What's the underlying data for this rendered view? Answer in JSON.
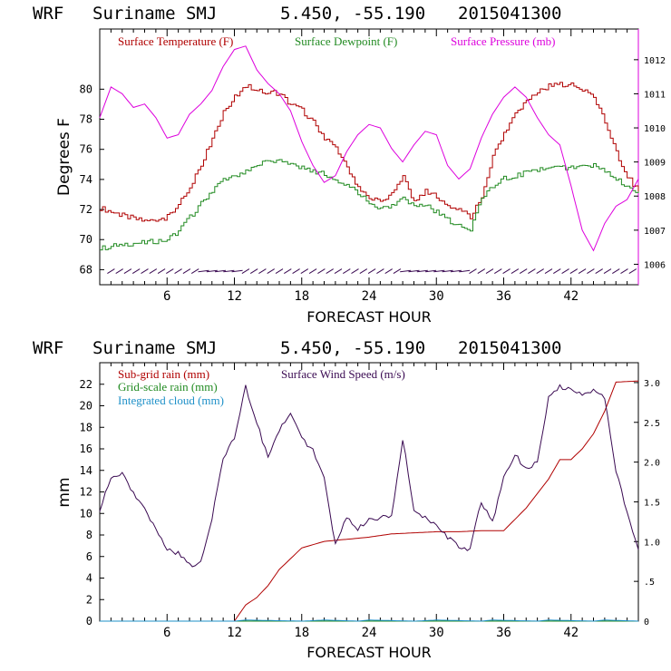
{
  "chart_data": [
    {
      "type": "line",
      "header": {
        "model": "WRF",
        "location": "Suriname SMJ",
        "coords": "5.450, -55.190",
        "init": "2015041300"
      },
      "xlabel": "FORECAST HOUR",
      "ylabel": "Degrees F",
      "xlim": [
        0,
        48
      ],
      "ylim": [
        67,
        84
      ],
      "y2lim": [
        1005.4,
        1012.9
      ],
      "xticks": [
        "6",
        "12",
        "18",
        "24",
        "30",
        "36",
        "42"
      ],
      "yticks": [
        "68",
        "70",
        "72",
        "74",
        "76",
        "78",
        "80"
      ],
      "y2ticks": [
        "1006",
        "1007",
        "1008",
        "1009",
        "1010",
        "1011",
        "1012"
      ],
      "legend": [
        "Surface Temperature (F)",
        "Surface Dewpoint (F)",
        "Surface Pressure (mb)"
      ],
      "colors": {
        "temperature": "#b00000",
        "dewpoint": "#228b22",
        "pressure": "#dd00dd",
        "axis": "#000000",
        "wind_barb": "#3a0a52"
      },
      "series": [
        {
          "name": "Surface Temperature (F)",
          "axis": "left",
          "x": [
            0,
            2,
            4,
            6,
            7,
            8,
            9,
            10,
            11,
            12,
            13,
            14,
            15,
            16,
            17,
            18,
            19,
            20,
            21,
            22,
            23,
            24,
            25,
            26,
            27,
            28,
            29,
            30,
            31,
            32,
            33,
            34,
            35,
            36,
            37,
            38,
            39,
            40,
            41,
            42,
            43,
            44,
            45,
            46,
            47,
            48
          ],
          "values": [
            72.1,
            71.6,
            71.2,
            71.5,
            72.3,
            73.5,
            75.0,
            76.8,
            78.5,
            79.5,
            80.2,
            80.0,
            79.8,
            79.7,
            79.0,
            78.6,
            77.8,
            76.8,
            76.0,
            74.8,
            73.5,
            72.8,
            72.5,
            73.0,
            74.2,
            72.5,
            73.3,
            72.8,
            72.3,
            72.0,
            71.5,
            72.8,
            75.5,
            77.0,
            78.3,
            79.2,
            79.8,
            80.2,
            80.3,
            80.4,
            80.0,
            79.5,
            77.8,
            75.8,
            74.2,
            73.2
          ]
        },
        {
          "name": "Surface Dewpoint (F)",
          "axis": "left",
          "x": [
            0,
            2,
            4,
            6,
            7,
            8,
            9,
            10,
            11,
            12,
            13,
            14,
            15,
            16,
            17,
            18,
            19,
            20,
            21,
            22,
            23,
            24,
            25,
            26,
            27,
            28,
            29,
            30,
            31,
            32,
            33,
            34,
            35,
            36,
            37,
            38,
            39,
            40,
            41,
            42,
            43,
            44,
            45,
            46,
            47,
            48
          ],
          "values": [
            69.4,
            69.7,
            69.8,
            70.0,
            70.6,
            71.5,
            72.4,
            73.3,
            73.9,
            74.2,
            74.6,
            75.0,
            75.2,
            75.2,
            75.0,
            74.8,
            74.6,
            74.3,
            74.0,
            73.6,
            73.1,
            72.4,
            72.0,
            72.2,
            72.7,
            72.2,
            72.3,
            71.8,
            71.3,
            71.0,
            70.7,
            72.8,
            73.5,
            74.1,
            74.2,
            74.5,
            74.6,
            74.7,
            74.8,
            74.8,
            74.9,
            74.9,
            74.5,
            74.0,
            73.6,
            73.2
          ]
        },
        {
          "name": "Surface Pressure (mb)",
          "axis": "right",
          "x": [
            0,
            1,
            2,
            3,
            4,
            5,
            6,
            7,
            8,
            9,
            10,
            11,
            12,
            13,
            14,
            15,
            16,
            17,
            18,
            19,
            20,
            21,
            22,
            23,
            24,
            25,
            26,
            27,
            28,
            29,
            30,
            31,
            32,
            33,
            34,
            35,
            36,
            37,
            38,
            39,
            40,
            41,
            42,
            43,
            44,
            45,
            46,
            47,
            48
          ],
          "values": [
            1010.3,
            1011.2,
            1011.0,
            1010.6,
            1010.7,
            1010.3,
            1009.7,
            1009.8,
            1010.4,
            1010.7,
            1011.1,
            1011.8,
            1012.3,
            1012.4,
            1011.7,
            1011.3,
            1011.0,
            1010.5,
            1009.6,
            1008.9,
            1008.4,
            1008.6,
            1009.3,
            1009.8,
            1010.1,
            1010.0,
            1009.4,
            1009.0,
            1009.5,
            1009.9,
            1009.8,
            1008.9,
            1008.5,
            1008.8,
            1009.7,
            1010.4,
            1010.9,
            1011.2,
            1010.9,
            1010.3,
            1009.8,
            1009.5,
            1008.3,
            1007.0,
            1006.4,
            1007.2,
            1007.7,
            1007.9,
            1008.5
          ]
        }
      ],
      "wind_barbs": {
        "x_start": 1,
        "x_end": 48,
        "step": 0.75,
        "y_value": 67.9
      }
    },
    {
      "type": "line",
      "header": {
        "model": "WRF",
        "location": "Suriname SMJ",
        "coords": "5.450, -55.190",
        "init": "2015041300"
      },
      "xlabel": "FORECAST HOUR",
      "ylabel": "mm",
      "xlim": [
        0,
        48
      ],
      "ylim": [
        0,
        24
      ],
      "y2lim": [
        0,
        3.25
      ],
      "xticks": [
        "6",
        "12",
        "18",
        "24",
        "30",
        "36",
        "42"
      ],
      "yticks": [
        "0",
        "2",
        "4",
        "6",
        "8",
        "10",
        "12",
        "14",
        "16",
        "18",
        "20",
        "22"
      ],
      "y2ticks": [
        "0",
        ".5",
        "1.0",
        "1.5",
        "2.0",
        "2.5",
        "3.0"
      ],
      "legend": [
        "Sub-grid rain (mm)",
        "Grid-scale rain (mm)",
        "Integrated cloud (mm)",
        "Surface Wind Speed (m/s)"
      ],
      "colors": {
        "subgrid": "#b00000",
        "gridscale": "#228b22",
        "cloud": "#1e90c8",
        "wind": "#3a0a52",
        "axis": "#000000"
      },
      "series": [
        {
          "name": "Sub-grid rain (mm)",
          "axis": "left",
          "x": [
            0,
            12,
            13,
            14,
            15,
            16,
            17,
            18,
            19,
            20,
            22,
            24,
            26,
            28,
            30,
            32,
            34,
            36,
            38,
            40,
            41,
            42,
            43,
            44,
            45,
            46,
            48
          ],
          "values": [
            0,
            0,
            1.5,
            2.2,
            3.3,
            4.8,
            5.8,
            6.8,
            7.1,
            7.4,
            7.6,
            7.8,
            8.1,
            8.2,
            8.3,
            8.3,
            8.4,
            8.4,
            10.5,
            13.2,
            15.0,
            15.0,
            16.0,
            17.4,
            19.5,
            22.2,
            22.3
          ]
        },
        {
          "name": "Grid-scale rain (mm)",
          "axis": "left",
          "x": [
            0,
            48
          ],
          "values": [
            0,
            0
          ]
        },
        {
          "name": "Integrated cloud (mm)",
          "axis": "left",
          "x": [
            0,
            12,
            13,
            18,
            20,
            23,
            24,
            28,
            30,
            34,
            35,
            39,
            40,
            44,
            45,
            48
          ],
          "values": [
            0,
            0,
            0.1,
            0,
            0.1,
            0,
            0.1,
            0,
            0.1,
            0,
            0.1,
            0,
            0.1,
            0,
            0.1,
            0
          ]
        },
        {
          "name": "Surface Wind Speed (m/s)",
          "axis": "right",
          "x": [
            0,
            1,
            2,
            3,
            4,
            5,
            6,
            7,
            8,
            9,
            10,
            11,
            12,
            13,
            14,
            15,
            16,
            17,
            18,
            19,
            20,
            21,
            22,
            23,
            24,
            25,
            26,
            27,
            28,
            29,
            30,
            31,
            32,
            33,
            34,
            35,
            36,
            37,
            38,
            39,
            40,
            41,
            42,
            43,
            44,
            45,
            46,
            47,
            48
          ],
          "values": [
            1.4,
            1.8,
            1.85,
            1.6,
            1.4,
            1.15,
            0.9,
            0.85,
            0.7,
            0.75,
            1.3,
            2.05,
            2.3,
            2.95,
            2.5,
            2.05,
            2.4,
            2.6,
            2.3,
            2.15,
            1.8,
            0.95,
            1.3,
            1.15,
            1.3,
            1.3,
            1.3,
            2.3,
            1.4,
            1.3,
            1.2,
            1.05,
            0.95,
            0.9,
            1.5,
            1.25,
            1.8,
            2.1,
            1.9,
            2.0,
            2.8,
            2.95,
            2.9,
            2.85,
            2.9,
            2.8,
            1.9,
            1.35,
            0.9
          ]
        }
      ]
    }
  ]
}
